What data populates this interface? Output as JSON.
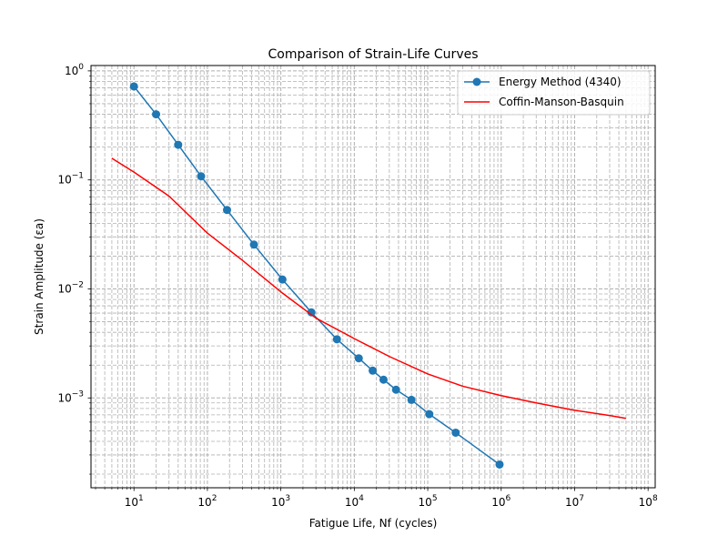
{
  "chart_data": {
    "type": "line",
    "title": "Comparison of Strain-Life Curves",
    "xlabel": "Fatigue Life, Nf (cycles)",
    "ylabel": "Strain Amplitude (εa)",
    "xscale": "log",
    "yscale": "log",
    "xlim": [
      2.6,
      125000000
    ],
    "ylim": [
      0.00015,
      1.12
    ],
    "grid": "both-major-minor-dashed",
    "legend_position": "top-right",
    "x_ticks": [
      {
        "value": 10,
        "base": "10",
        "exp": "1"
      },
      {
        "value": 100,
        "base": "10",
        "exp": "2"
      },
      {
        "value": 1000,
        "base": "10",
        "exp": "3"
      },
      {
        "value": 10000,
        "base": "10",
        "exp": "4"
      },
      {
        "value": 100000,
        "base": "10",
        "exp": "5"
      },
      {
        "value": 1000000,
        "base": "10",
        "exp": "6"
      },
      {
        "value": 10000000,
        "base": "10",
        "exp": "7"
      },
      {
        "value": 100000000,
        "base": "10",
        "exp": "8"
      }
    ],
    "y_ticks": [
      {
        "value": 0.001,
        "base": "10",
        "exp": "−3"
      },
      {
        "value": 0.01,
        "base": "10",
        "exp": "−2"
      },
      {
        "value": 0.1,
        "base": "10",
        "exp": "−1"
      },
      {
        "value": 1,
        "base": "10",
        "exp": "0"
      }
    ],
    "series": [
      {
        "name": "Energy Method (4340)",
        "color": "#1f77b4",
        "style": "line-with-circle-markers",
        "points": [
          [
            10,
            0.72
          ],
          [
            20,
            0.4
          ],
          [
            40,
            0.21
          ],
          [
            82,
            0.108
          ],
          [
            185,
            0.053
          ],
          [
            430,
            0.0255
          ],
          [
            1050,
            0.0122
          ],
          [
            2600,
            0.0061
          ],
          [
            5800,
            0.00345
          ],
          [
            11500,
            0.00231
          ],
          [
            17800,
            0.00178
          ],
          [
            25000,
            0.00147
          ],
          [
            37000,
            0.00119
          ],
          [
            60000,
            0.00096
          ],
          [
            105000,
            0.00071
          ],
          [
            240000,
            0.00048
          ],
          [
            950000,
            0.000245
          ]
        ]
      },
      {
        "name": "Coffin-Manson-Basquin",
        "color": "#ff0000",
        "style": "line",
        "points": [
          [
            5,
            0.158
          ],
          [
            10,
            0.118
          ],
          [
            30,
            0.071
          ],
          [
            100,
            0.0325
          ],
          [
            300,
            0.0183
          ],
          [
            1000,
            0.0094
          ],
          [
            3000,
            0.0054
          ],
          [
            10000,
            0.0035
          ],
          [
            30000,
            0.0024
          ],
          [
            100000,
            0.00166
          ],
          [
            300000,
            0.00128
          ],
          [
            1000000,
            0.00105
          ],
          [
            3000000,
            0.0009
          ],
          [
            10000000,
            0.00077
          ],
          [
            30000000,
            0.00069
          ],
          [
            50000000,
            0.00065
          ]
        ]
      }
    ]
  }
}
